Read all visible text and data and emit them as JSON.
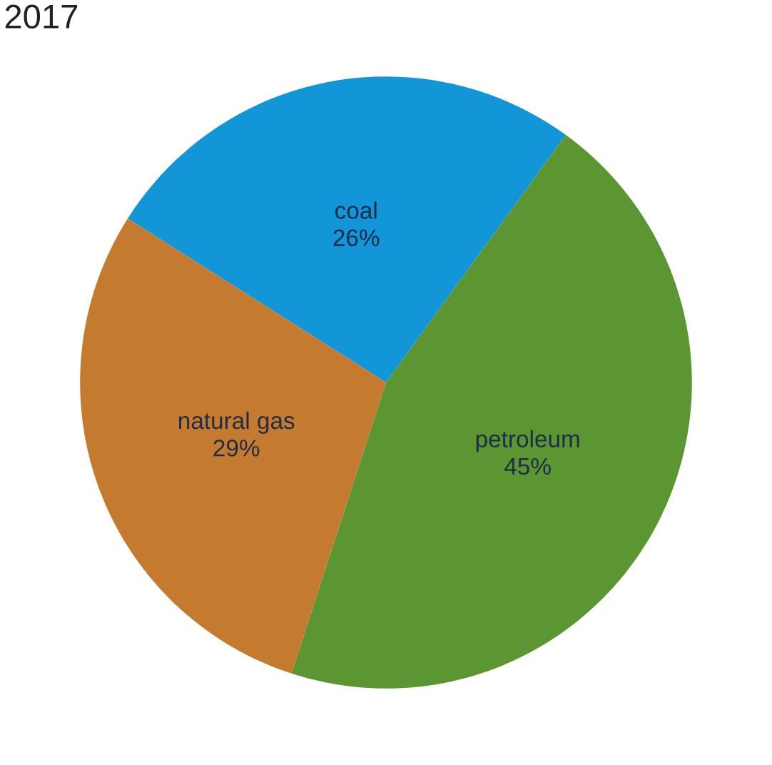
{
  "chart_data": {
    "type": "pie",
    "title": "2017",
    "categories": [
      "coal",
      "petroleum",
      "natural gas"
    ],
    "values": [
      26,
      45,
      29
    ],
    "colors": [
      "#1396d8",
      "#5b9632",
      "#c47a2f"
    ],
    "value_labels": [
      "26%",
      "45%",
      "29%"
    ]
  }
}
